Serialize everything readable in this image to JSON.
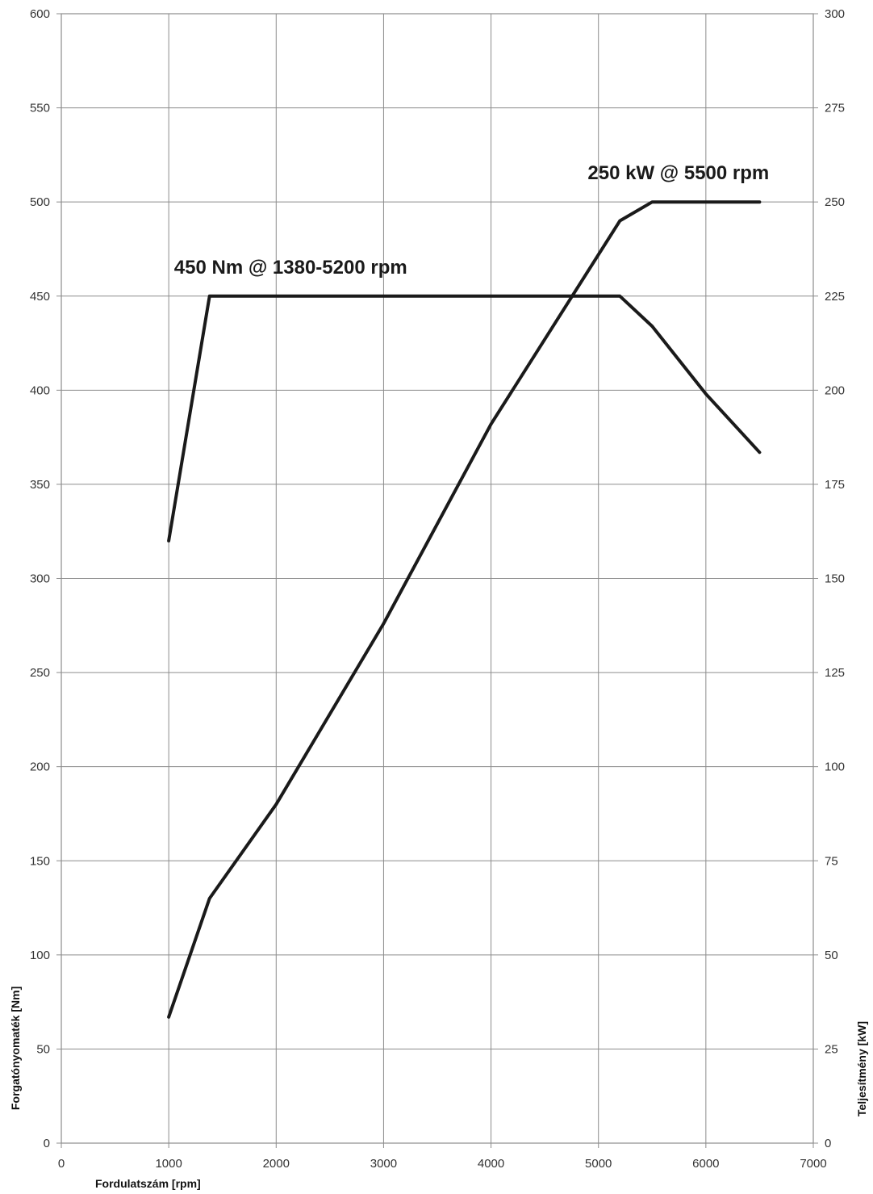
{
  "chart_data": {
    "type": "line",
    "x": {
      "label": "Fordulatszám [rpm]",
      "range": [
        0,
        7000
      ],
      "ticks": [
        "0",
        "1000",
        "2000",
        "3000",
        "4000",
        "5000",
        "6000",
        "7000"
      ]
    },
    "y_left": {
      "label": "Forgatónyomaték [Nm]",
      "range": [
        0,
        600
      ],
      "ticks": [
        "0",
        "50",
        "100",
        "150",
        "200",
        "250",
        "300",
        "350",
        "400",
        "450",
        "500",
        "550",
        "600"
      ]
    },
    "y_right": {
      "label": "Teljesítmény [kW]",
      "range": [
        0,
        300
      ],
      "ticks": [
        "0",
        "25",
        "50",
        "75",
        "100",
        "125",
        "150",
        "175",
        "200",
        "225",
        "250",
        "275",
        "300"
      ]
    },
    "grid": true,
    "line_color": "#1a1a1a",
    "grid_color": "#8c8c8c",
    "series": [
      {
        "axis": "left",
        "points": [
          [
            1000,
            320
          ],
          [
            1380,
            450
          ],
          [
            5200,
            450
          ],
          [
            5500,
            434
          ],
          [
            6000,
            398
          ],
          [
            6500,
            367
          ]
        ]
      },
      {
        "axis": "right",
        "points": [
          [
            1000,
            33.5
          ],
          [
            1380,
            65
          ],
          [
            2000,
            90
          ],
          [
            3000,
            138
          ],
          [
            4000,
            191
          ],
          [
            5200,
            245
          ],
          [
            5500,
            250
          ],
          [
            6500,
            250
          ]
        ]
      }
    ],
    "annotations": [
      {
        "text": "450 Nm @ 1380-5200 rpm",
        "x": 1050,
        "y_left": 462
      },
      {
        "text": "250 kW @ 5500 rpm",
        "x": 4900,
        "y_left": 512
      }
    ]
  }
}
